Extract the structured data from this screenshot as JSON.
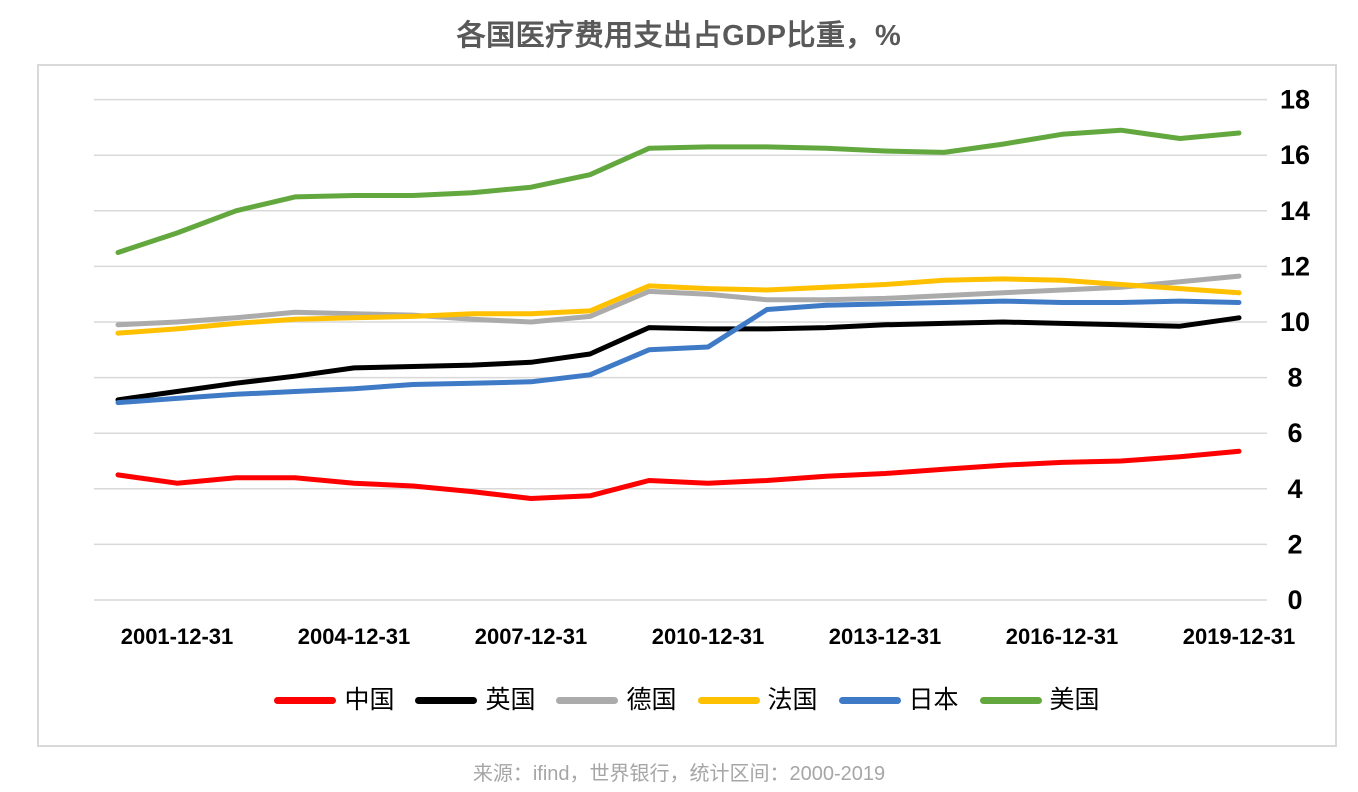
{
  "title": "各国医疗费用支出占GDP比重，%",
  "source": "来源：ifind，世界银行，统计区间：2000-2019",
  "colors": {
    "title_text": "#595959",
    "axis_labels": "#000000",
    "grid": "#d9d9d9",
    "card_border": "#d9d9d9",
    "source_text": "#a6a6a6",
    "background": "#ffffff"
  },
  "chart_data": {
    "type": "line",
    "title": "各国医疗费用支出占GDP比重，%",
    "xlabel": "",
    "ylabel": "",
    "x": [
      2000,
      2001,
      2002,
      2003,
      2004,
      2005,
      2006,
      2007,
      2008,
      2009,
      2010,
      2011,
      2012,
      2013,
      2014,
      2015,
      2016,
      2017,
      2018,
      2019
    ],
    "x_tick_labels": [
      "2001-12-31",
      "2004-12-31",
      "2007-12-31",
      "2010-12-31",
      "2013-12-31",
      "2016-12-31",
      "2019-12-31"
    ],
    "ylim": [
      0,
      18
    ],
    "y_ticks": [
      0,
      2,
      4,
      6,
      8,
      10,
      12,
      14,
      16,
      18
    ],
    "grid": "horizontal",
    "legend_position": "bottom",
    "series": [
      {
        "name": "中国",
        "key": "china",
        "color": "#ff0000",
        "values": [
          4.5,
          4.2,
          4.4,
          4.4,
          4.2,
          4.1,
          3.9,
          3.65,
          3.75,
          4.3,
          4.2,
          4.3,
          4.45,
          4.55,
          4.7,
          4.85,
          4.95,
          5.0,
          5.15,
          5.35
        ]
      },
      {
        "name": "英国",
        "key": "uk",
        "color": "#000000",
        "values": [
          7.2,
          7.5,
          7.8,
          8.05,
          8.35,
          8.4,
          8.45,
          8.55,
          8.85,
          9.8,
          9.75,
          9.75,
          9.8,
          9.9,
          9.95,
          10.0,
          9.95,
          9.9,
          9.85,
          10.15
        ]
      },
      {
        "name": "德国",
        "key": "germany",
        "color": "#ababab",
        "values": [
          9.9,
          10.0,
          10.15,
          10.35,
          10.3,
          10.25,
          10.1,
          10.0,
          10.2,
          11.1,
          11.0,
          10.8,
          10.8,
          10.85,
          10.95,
          11.05,
          11.15,
          11.25,
          11.45,
          11.65
        ]
      },
      {
        "name": "法国",
        "key": "france",
        "color": "#ffc000",
        "values": [
          9.6,
          9.75,
          9.95,
          10.1,
          10.15,
          10.2,
          10.3,
          10.3,
          10.4,
          11.3,
          11.2,
          11.15,
          11.25,
          11.35,
          11.5,
          11.55,
          11.5,
          11.35,
          11.2,
          11.05
        ]
      },
      {
        "name": "日本",
        "key": "japan",
        "color": "#3e7ac6",
        "values": [
          7.1,
          7.25,
          7.4,
          7.5,
          7.6,
          7.75,
          7.8,
          7.85,
          8.1,
          9.0,
          9.1,
          10.45,
          10.6,
          10.65,
          10.7,
          10.75,
          10.7,
          10.7,
          10.75,
          10.7
        ]
      },
      {
        "name": "美国",
        "key": "usa",
        "color": "#63a83e",
        "values": [
          12.5,
          13.2,
          14.0,
          14.5,
          14.55,
          14.55,
          14.65,
          14.85,
          15.3,
          16.25,
          16.3,
          16.3,
          16.25,
          16.15,
          16.1,
          16.4,
          16.75,
          16.9,
          16.6,
          16.8
        ]
      }
    ]
  }
}
